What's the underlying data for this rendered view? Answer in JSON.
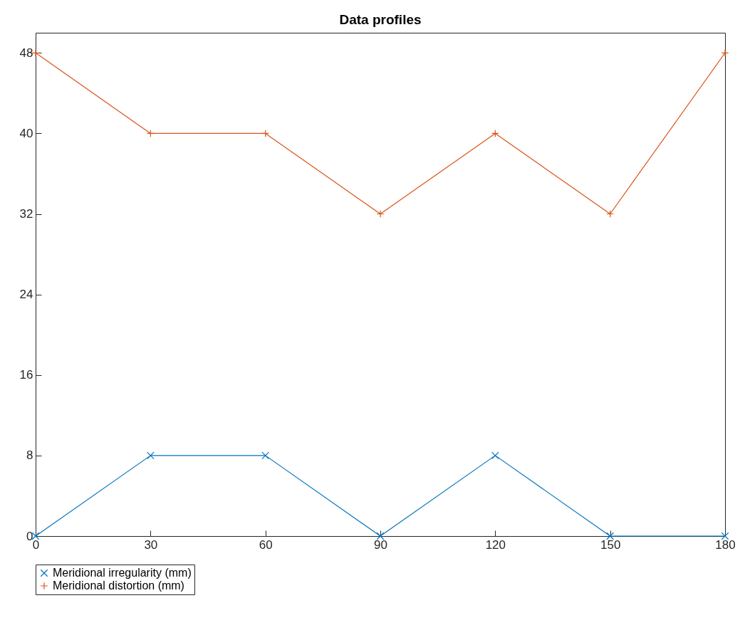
{
  "chart_data": {
    "type": "line",
    "title": "Data profiles",
    "x": [
      0,
      30,
      60,
      90,
      120,
      150,
      180
    ],
    "series": [
      {
        "name": "Meridional irregularity (mm)",
        "color": "#0072bd",
        "marker": "cross",
        "values": [
          0,
          8,
          8,
          0,
          8,
          0,
          0
        ]
      },
      {
        "name": "Meridional distortion (mm)",
        "color": "#d95319",
        "marker": "plus",
        "values": [
          48,
          40,
          40,
          32,
          40,
          32,
          48
        ]
      }
    ],
    "xlim": [
      0,
      180
    ],
    "xticks": [
      0,
      30,
      60,
      90,
      120,
      150,
      180
    ],
    "ylim": [
      0,
      50
    ],
    "yticks": [
      0,
      8,
      16,
      24,
      32,
      40,
      48
    ],
    "grid": false,
    "legend": "bottom",
    "line_style": "solid"
  }
}
